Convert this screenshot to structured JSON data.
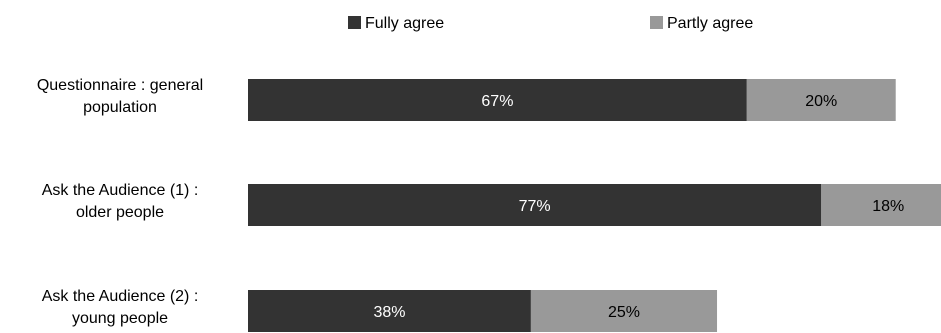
{
  "chart_data": {
    "type": "bar",
    "orientation": "horizontal",
    "stacked": true,
    "categories": [
      [
        "Questionnaire : general",
        "population"
      ],
      [
        "Ask the Audience (1) :",
        "older people"
      ],
      [
        "Ask the Audience (2) :",
        "young people"
      ]
    ],
    "series": [
      {
        "name": "Fully agree",
        "values": [
          67,
          77,
          38
        ],
        "labels": [
          "67%",
          "77%",
          "38%"
        ],
        "color": "#333333",
        "label_color": "#ffffff"
      },
      {
        "name": "Partly agree",
        "values": [
          20,
          18,
          25
        ],
        "labels": [
          "20%",
          "18%",
          "25%"
        ],
        "color": "#999999",
        "label_color": "#000000"
      }
    ],
    "xlim": [
      0,
      93
    ],
    "grid": false,
    "axis_visible": false,
    "legend_position": "top-center"
  }
}
